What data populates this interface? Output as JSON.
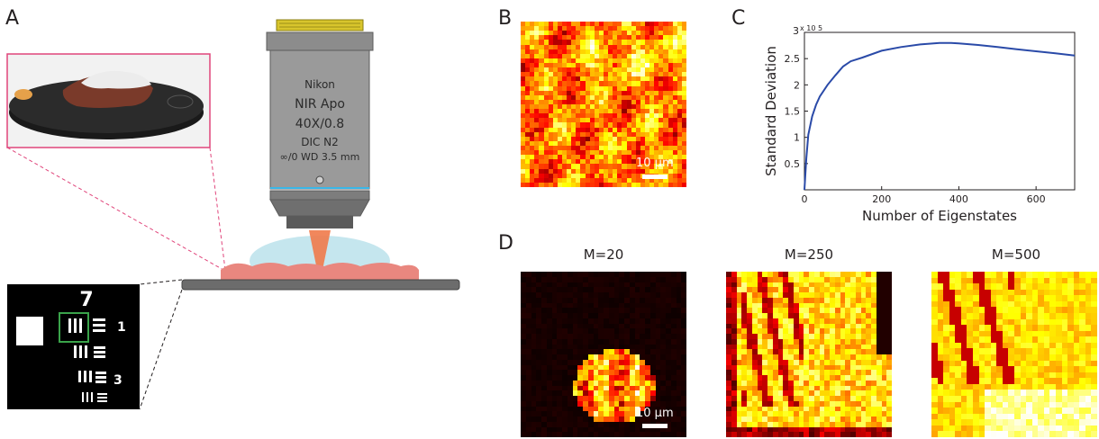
{
  "panels": {
    "a": "A",
    "b": "B",
    "c": "C",
    "d": "D"
  },
  "objective": {
    "line1": "Nikon",
    "line2": "NIR Apo",
    "line3": "40X/0.8",
    "line4": "DIC N2",
    "line5": "∞/0 WD 3.5 mm"
  },
  "target": {
    "group_top": "7",
    "element_1": "1",
    "element_3": "3"
  },
  "scalebar": {
    "b": "10 µm",
    "d": "10 µm"
  },
  "panel_d": {
    "m1": "M=20",
    "m2": "M=250",
    "m3": "M=500"
  },
  "colors": {
    "accent_pink": "#e0457b",
    "objective_blue": "#3ab7e8",
    "box_green": "#3aa34a",
    "line_blue": "#2a4aa8"
  },
  "chart_data": {
    "type": "line",
    "title": "",
    "xlabel": "Number of Eigenstates",
    "ylabel": "Standard Deviation",
    "y_multiplier": "x 10^5",
    "y_exponent_label": "x 10",
    "y_exponent_power": "5",
    "y_top_label": "3",
    "xlim": [
      0,
      700
    ],
    "ylim": [
      0,
      300000
    ],
    "xticks": [
      0,
      200,
      400,
      600
    ],
    "xtick_labels": [
      "0",
      "200",
      "400",
      "600"
    ],
    "yticks": [
      50000,
      100000,
      150000,
      200000,
      250000
    ],
    "ytick_labels": [
      "0.5",
      "1",
      "1.5",
      "2",
      "2.5"
    ],
    "grid": false,
    "series": [
      {
        "x": [
          0,
          5,
          10,
          20,
          30,
          40,
          60,
          80,
          100,
          120,
          150,
          200,
          250,
          300,
          350,
          380,
          400,
          450,
          500,
          550,
          600,
          650,
          700
        ],
        "y": [
          0,
          60000,
          105000,
          140000,
          162000,
          178000,
          200000,
          218000,
          235000,
          245000,
          252000,
          265000,
          272000,
          277000,
          280000,
          280000,
          279000,
          276000,
          272000,
          268000,
          264000,
          260000,
          256000
        ]
      }
    ]
  }
}
